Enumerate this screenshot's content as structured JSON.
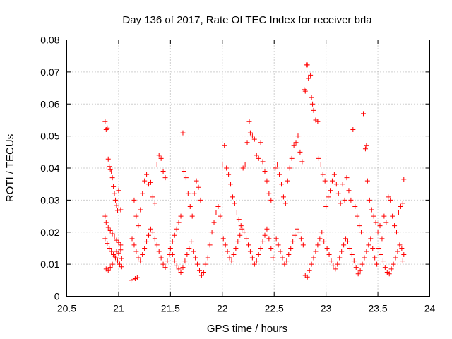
{
  "chart_data": {
    "type": "scatter",
    "title": "Day 136 of 2017, Rate Of TEC Index for receiver brla",
    "xlabel": "GPS time / hours",
    "ylabel": "ROTI / TECUs",
    "xlim": [
      20.5,
      24
    ],
    "ylim": [
      0,
      0.08
    ],
    "x_ticks": [
      20.5,
      21,
      21.5,
      22,
      22.5,
      23,
      23.5,
      24
    ],
    "x_tick_labels": [
      "20.5",
      "21",
      "21.5",
      "22",
      "22.5",
      "23",
      "23.5",
      "24"
    ],
    "y_ticks": [
      0,
      0.01,
      0.02,
      0.03,
      0.04,
      0.05,
      0.06,
      0.07,
      0.08
    ],
    "y_tick_labels": [
      "0",
      "0.01",
      "0.02",
      "0.03",
      "0.04",
      "0.05",
      "0.06",
      "0.07",
      "0.08"
    ],
    "grid": true,
    "marker": "plus",
    "marker_color": "#ff0000",
    "series": [
      {
        "points": [
          [
            20.87,
            0.0545
          ],
          [
            20.88,
            0.052
          ],
          [
            20.89,
            0.0525
          ],
          [
            20.9,
            0.0428
          ],
          [
            20.91,
            0.0405
          ],
          [
            20.92,
            0.0395
          ],
          [
            20.93,
            0.0388
          ],
          [
            20.94,
            0.037
          ],
          [
            20.95,
            0.0342
          ],
          [
            20.96,
            0.032
          ],
          [
            20.97,
            0.03
          ],
          [
            20.98,
            0.0283
          ],
          [
            20.99,
            0.0268
          ],
          [
            21.0,
            0.033
          ],
          [
            21.02,
            0.027
          ],
          [
            20.87,
            0.025
          ],
          [
            20.88,
            0.023
          ],
          [
            20.9,
            0.0215
          ],
          [
            20.92,
            0.0205
          ],
          [
            20.94,
            0.0195
          ],
          [
            20.96,
            0.0185
          ],
          [
            20.98,
            0.0175
          ],
          [
            21.0,
            0.0168
          ],
          [
            21.02,
            0.016
          ],
          [
            20.87,
            0.018
          ],
          [
            20.89,
            0.0165
          ],
          [
            20.91,
            0.015
          ],
          [
            20.93,
            0.014
          ],
          [
            20.95,
            0.013
          ],
          [
            20.97,
            0.012
          ],
          [
            20.99,
            0.011
          ],
          [
            21.01,
            0.01
          ],
          [
            21.03,
            0.0092
          ],
          [
            20.88,
            0.0085
          ],
          [
            20.9,
            0.008
          ],
          [
            20.92,
            0.009
          ],
          [
            20.94,
            0.01
          ],
          [
            20.96,
            0.0125
          ],
          [
            20.98,
            0.014
          ],
          [
            21.0,
            0.0135
          ],
          [
            21.02,
            0.0145
          ],
          [
            21.03,
            0.0118
          ],
          [
            21.12,
            0.005
          ],
          [
            21.14,
            0.0052
          ],
          [
            21.16,
            0.0055
          ],
          [
            21.18,
            0.0058
          ],
          [
            21.15,
            0.03
          ],
          [
            21.17,
            0.025
          ],
          [
            21.19,
            0.022
          ],
          [
            21.21,
            0.027
          ],
          [
            21.23,
            0.032
          ],
          [
            21.25,
            0.036
          ],
          [
            21.27,
            0.038
          ],
          [
            21.29,
            0.035
          ],
          [
            21.31,
            0.0355
          ],
          [
            21.33,
            0.031
          ],
          [
            21.35,
            0.029
          ],
          [
            21.37,
            0.041
          ],
          [
            21.39,
            0.044
          ],
          [
            21.41,
            0.043
          ],
          [
            21.43,
            0.039
          ],
          [
            21.45,
            0.037
          ],
          [
            21.13,
            0.018
          ],
          [
            21.15,
            0.016
          ],
          [
            21.17,
            0.014
          ],
          [
            21.19,
            0.012
          ],
          [
            21.21,
            0.011
          ],
          [
            21.23,
            0.013
          ],
          [
            21.25,
            0.015
          ],
          [
            21.27,
            0.017
          ],
          [
            21.29,
            0.019
          ],
          [
            21.31,
            0.021
          ],
          [
            21.33,
            0.02
          ],
          [
            21.35,
            0.018
          ],
          [
            21.37,
            0.016
          ],
          [
            21.39,
            0.014
          ],
          [
            21.41,
            0.012
          ],
          [
            21.43,
            0.01
          ],
          [
            21.45,
            0.009
          ],
          [
            21.47,
            0.011
          ],
          [
            21.49,
            0.013
          ],
          [
            21.5,
            0.015
          ],
          [
            21.52,
            0.017
          ],
          [
            21.54,
            0.019
          ],
          [
            21.56,
            0.021
          ],
          [
            21.58,
            0.023
          ],
          [
            21.6,
            0.025
          ],
          [
            21.62,
            0.051
          ],
          [
            21.63,
            0.039
          ],
          [
            21.65,
            0.037
          ],
          [
            21.67,
            0.032
          ],
          [
            21.69,
            0.028
          ],
          [
            21.71,
            0.025
          ],
          [
            21.73,
            0.032
          ],
          [
            21.75,
            0.036
          ],
          [
            21.77,
            0.034
          ],
          [
            21.79,
            0.03
          ],
          [
            21.52,
            0.013
          ],
          [
            21.54,
            0.011
          ],
          [
            21.56,
            0.0095
          ],
          [
            21.58,
            0.0085
          ],
          [
            21.6,
            0.0075
          ],
          [
            21.62,
            0.009
          ],
          [
            21.64,
            0.011
          ],
          [
            21.66,
            0.013
          ],
          [
            21.68,
            0.015
          ],
          [
            21.7,
            0.017
          ],
          [
            21.72,
            0.014
          ],
          [
            21.74,
            0.012
          ],
          [
            21.76,
            0.01
          ],
          [
            21.78,
            0.008
          ],
          [
            21.8,
            0.0065
          ],
          [
            21.82,
            0.0075
          ],
          [
            21.84,
            0.01
          ],
          [
            21.86,
            0.012
          ],
          [
            21.88,
            0.016
          ],
          [
            21.9,
            0.02
          ],
          [
            21.92,
            0.023
          ],
          [
            21.94,
            0.026
          ],
          [
            21.96,
            0.028
          ],
          [
            21.98,
            0.025
          ],
          [
            22.0,
            0.041
          ],
          [
            22.02,
            0.047
          ],
          [
            22.04,
            0.04
          ],
          [
            22.06,
            0.038
          ],
          [
            22.08,
            0.035
          ],
          [
            22.1,
            0.031
          ],
          [
            22.12,
            0.029
          ],
          [
            22.14,
            0.026
          ],
          [
            22.16,
            0.024
          ],
          [
            22.18,
            0.022
          ],
          [
            22.2,
            0.04
          ],
          [
            22.22,
            0.041
          ],
          [
            22.24,
            0.048
          ],
          [
            22.26,
            0.0545
          ],
          [
            22.27,
            0.051
          ],
          [
            22.29,
            0.05
          ],
          [
            22.31,
            0.049
          ],
          [
            22.33,
            0.044
          ],
          [
            22.35,
            0.043
          ],
          [
            22.37,
            0.048
          ],
          [
            22.39,
            0.042
          ],
          [
            22.41,
            0.039
          ],
          [
            22.43,
            0.036
          ],
          [
            22.45,
            0.032
          ],
          [
            22.47,
            0.03
          ],
          [
            22.01,
            0.018
          ],
          [
            22.03,
            0.016
          ],
          [
            22.05,
            0.014
          ],
          [
            22.07,
            0.012
          ],
          [
            22.09,
            0.011
          ],
          [
            22.11,
            0.013
          ],
          [
            22.13,
            0.015
          ],
          [
            22.15,
            0.017
          ],
          [
            22.17,
            0.019
          ],
          [
            22.19,
            0.021
          ],
          [
            22.21,
            0.02
          ],
          [
            22.23,
            0.018
          ],
          [
            22.25,
            0.016
          ],
          [
            22.27,
            0.014
          ],
          [
            22.29,
            0.012
          ],
          [
            22.31,
            0.01
          ],
          [
            22.33,
            0.011
          ],
          [
            22.35,
            0.013
          ],
          [
            22.37,
            0.015
          ],
          [
            22.39,
            0.017
          ],
          [
            22.41,
            0.019
          ],
          [
            22.43,
            0.021
          ],
          [
            22.45,
            0.018
          ],
          [
            22.47,
            0.015
          ],
          [
            22.49,
            0.012
          ],
          [
            22.51,
            0.04
          ],
          [
            22.53,
            0.041
          ],
          [
            22.55,
            0.038
          ],
          [
            22.57,
            0.035
          ],
          [
            22.59,
            0.031
          ],
          [
            22.61,
            0.029
          ],
          [
            22.63,
            0.036
          ],
          [
            22.65,
            0.04
          ],
          [
            22.67,
            0.043
          ],
          [
            22.69,
            0.047
          ],
          [
            22.71,
            0.048
          ],
          [
            22.73,
            0.05
          ],
          [
            22.75,
            0.045
          ],
          [
            22.77,
            0.042
          ],
          [
            22.79,
            0.0645
          ],
          [
            22.8,
            0.064
          ],
          [
            22.81,
            0.0722
          ],
          [
            22.82,
            0.0722
          ],
          [
            22.83,
            0.068
          ],
          [
            22.85,
            0.069
          ],
          [
            22.86,
            0.062
          ],
          [
            22.87,
            0.06
          ],
          [
            22.88,
            0.058
          ],
          [
            22.9,
            0.055
          ],
          [
            22.92,
            0.0545
          ],
          [
            22.93,
            0.043
          ],
          [
            22.95,
            0.041
          ],
          [
            22.97,
            0.038
          ],
          [
            22.99,
            0.036
          ],
          [
            22.52,
            0.018
          ],
          [
            22.54,
            0.016
          ],
          [
            22.56,
            0.014
          ],
          [
            22.58,
            0.012
          ],
          [
            22.6,
            0.01
          ],
          [
            22.62,
            0.011
          ],
          [
            22.64,
            0.013
          ],
          [
            22.66,
            0.015
          ],
          [
            22.68,
            0.017
          ],
          [
            22.7,
            0.019
          ],
          [
            22.72,
            0.021
          ],
          [
            22.74,
            0.02
          ],
          [
            22.76,
            0.018
          ],
          [
            22.78,
            0.016
          ],
          [
            22.8,
            0.0065
          ],
          [
            22.82,
            0.006
          ],
          [
            22.84,
            0.008
          ],
          [
            22.86,
            0.01
          ],
          [
            22.88,
            0.012
          ],
          [
            22.9,
            0.014
          ],
          [
            22.92,
            0.016
          ],
          [
            22.94,
            0.018
          ],
          [
            22.96,
            0.02
          ],
          [
            22.98,
            0.017
          ],
          [
            23.0,
            0.028
          ],
          [
            23.02,
            0.031
          ],
          [
            23.04,
            0.033
          ],
          [
            23.06,
            0.036
          ],
          [
            23.08,
            0.038
          ],
          [
            23.1,
            0.035
          ],
          [
            23.12,
            0.032
          ],
          [
            23.14,
            0.029
          ],
          [
            23.16,
            0.035
          ],
          [
            23.18,
            0.03
          ],
          [
            23.2,
            0.037
          ],
          [
            23.22,
            0.033
          ],
          [
            23.24,
            0.03
          ],
          [
            23.26,
            0.052
          ],
          [
            23.28,
            0.028
          ],
          [
            23.3,
            0.025
          ],
          [
            23.32,
            0.022
          ],
          [
            23.34,
            0.02
          ],
          [
            23.36,
            0.057
          ],
          [
            23.38,
            0.046
          ],
          [
            23.39,
            0.047
          ],
          [
            23.4,
            0.036
          ],
          [
            23.42,
            0.03
          ],
          [
            23.44,
            0.027
          ],
          [
            23.46,
            0.025
          ],
          [
            23.48,
            0.023
          ],
          [
            23.01,
            0.015
          ],
          [
            23.03,
            0.013
          ],
          [
            23.05,
            0.011
          ],
          [
            23.07,
            0.0095
          ],
          [
            23.09,
            0.0085
          ],
          [
            23.11,
            0.01
          ],
          [
            23.13,
            0.012
          ],
          [
            23.15,
            0.014
          ],
          [
            23.17,
            0.016
          ],
          [
            23.19,
            0.018
          ],
          [
            23.21,
            0.017
          ],
          [
            23.23,
            0.015
          ],
          [
            23.25,
            0.013
          ],
          [
            23.27,
            0.011
          ],
          [
            23.29,
            0.009
          ],
          [
            23.31,
            0.007
          ],
          [
            23.33,
            0.008
          ],
          [
            23.35,
            0.01
          ],
          [
            23.37,
            0.012
          ],
          [
            23.39,
            0.014
          ],
          [
            23.41,
            0.016
          ],
          [
            23.43,
            0.018
          ],
          [
            23.45,
            0.015
          ],
          [
            23.47,
            0.012
          ],
          [
            23.49,
            0.01
          ],
          [
            23.5,
            0.02
          ],
          [
            23.52,
            0.022
          ],
          [
            23.54,
            0.018
          ],
          [
            23.56,
            0.025
          ],
          [
            23.58,
            0.023
          ],
          [
            23.6,
            0.031
          ],
          [
            23.62,
            0.03
          ],
          [
            23.64,
            0.025
          ],
          [
            23.66,
            0.022
          ],
          [
            23.68,
            0.02
          ],
          [
            23.7,
            0.026
          ],
          [
            23.72,
            0.028
          ],
          [
            23.74,
            0.029
          ],
          [
            23.75,
            0.0365
          ],
          [
            23.51,
            0.015
          ],
          [
            23.53,
            0.013
          ],
          [
            23.55,
            0.011
          ],
          [
            23.57,
            0.009
          ],
          [
            23.59,
            0.0075
          ],
          [
            23.61,
            0.007
          ],
          [
            23.63,
            0.0085
          ],
          [
            23.65,
            0.01
          ],
          [
            23.67,
            0.012
          ],
          [
            23.69,
            0.014
          ],
          [
            23.71,
            0.016
          ],
          [
            23.73,
            0.015
          ],
          [
            23.75,
            0.013
          ],
          [
            23.74,
            0.011
          ]
        ]
      }
    ]
  }
}
